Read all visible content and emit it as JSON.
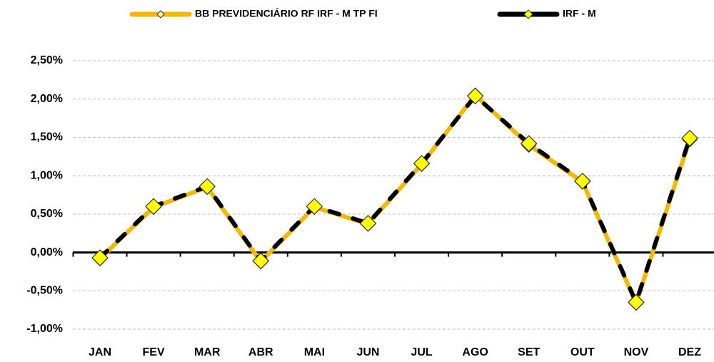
{
  "chart_data": {
    "type": "line",
    "categories": [
      "JAN",
      "FEV",
      "MAR",
      "ABR",
      "MAI",
      "JUN",
      "JUL",
      "AGO",
      "SET",
      "OUT",
      "NOV",
      "DEZ"
    ],
    "series": [
      {
        "name": "BB PREVIDENCIÁRIO RF IRF - M TP FI",
        "color": "#f5b800",
        "values": [
          -0.08,
          0.59,
          0.85,
          -0.12,
          0.59,
          0.37,
          1.15,
          2.05,
          1.4,
          0.92,
          -0.66,
          1.47
        ]
      },
      {
        "name": "IRF - M",
        "color": "#000000",
        "values": [
          -0.07,
          0.6,
          0.86,
          -0.11,
          0.6,
          0.38,
          1.16,
          2.04,
          1.42,
          0.93,
          -0.65,
          1.49
        ]
      }
    ],
    "ylim": [
      -1.0,
      2.5
    ],
    "yticks": [
      {
        "value": -1.0,
        "label": "-1,00%"
      },
      {
        "value": -0.5,
        "label": "-0,50%"
      },
      {
        "value": 0,
        "label": "0,00%"
      },
      {
        "value": 0.5,
        "label": "0,50%"
      },
      {
        "value": 1.0,
        "label": "1,00%"
      },
      {
        "value": 1.5,
        "label": "1,50%"
      },
      {
        "value": 2.0,
        "label": "2,00%"
      },
      {
        "value": 2.5,
        "label": "2,50%"
      }
    ],
    "grid": true,
    "legend": "top"
  }
}
